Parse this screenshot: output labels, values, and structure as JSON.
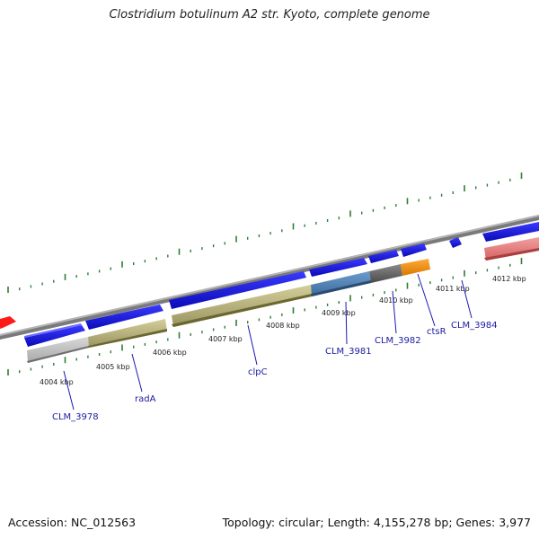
{
  "title": "Clostridium botulinum A2 str. Kyoto, complete genome",
  "footer": {
    "accession": "Accession: NC_012563",
    "summary": "Topology: circular; Length: 4,155,278 bp; Genes: 3,977"
  },
  "colors": {
    "backbone": "#8a8a8a",
    "tick": "#2e7d32",
    "cds_forward": "#1414e6",
    "cds_reverse": "#e61414",
    "label": "#1a1aa0"
  },
  "kbp_labels": [
    "4004 kbp",
    "4005 kbp",
    "4006 kbp",
    "4007 kbp",
    "4008 kbp",
    "4009 kbp",
    "4010 kbp",
    "4011 kbp",
    "4012 kbp"
  ],
  "genes": [
    {
      "name": "CLM_3978"
    },
    {
      "name": "radA"
    },
    {
      "name": "clpC"
    },
    {
      "name": "CLM_3981"
    },
    {
      "name": "CLM_3982"
    },
    {
      "name": "ctsR"
    },
    {
      "name": "CLM_3984"
    }
  ]
}
